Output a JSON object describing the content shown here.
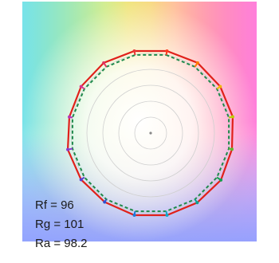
{
  "chart_data": {
    "type": "polar-line",
    "title": "",
    "series": [
      {
        "kind": "test",
        "color": "#e0211b",
        "r": [
          1.05,
          1.06,
          1.05,
          1.05,
          1.04,
          1.06,
          1.05,
          1.05,
          1.05,
          1.04,
          1.05,
          1.06,
          1.04,
          1.05,
          1.06,
          1.05
        ]
      },
      {
        "kind": "reference",
        "color": "#1f8a4c",
        "r": [
          1.0,
          1.0,
          1.0,
          1.0,
          1.0,
          1.0,
          1.0,
          1.0,
          1.0,
          1.0,
          1.0,
          1.0,
          1.0,
          1.0,
          1.0,
          1.0
        ]
      }
    ],
    "bins": 16,
    "rings": [
      0.2,
      0.4,
      0.6,
      0.8,
      1.0
    ],
    "hue_marker_colors": [
      "#ff3b1f",
      "#ff7a00",
      "#f2b600",
      "#b9cf00",
      "#5fb82b",
      "#14a04f",
      "#0aa38f",
      "#13a8c8",
      "#1d7ad9",
      "#2e4fd1",
      "#5b3fcf",
      "#8a3bcc",
      "#b636b8",
      "#d9358e",
      "#e23560",
      "#ea3838"
    ],
    "grid": true,
    "legend": "none"
  },
  "metrics": {
    "rf": "Rf = 96",
    "rg": "Rg = 101",
    "ra": "Ra = 98.2"
  },
  "colors": {
    "background_center": "#ffffff",
    "grid_ring": "#cfcfcf",
    "center_dot": "#888888"
  }
}
